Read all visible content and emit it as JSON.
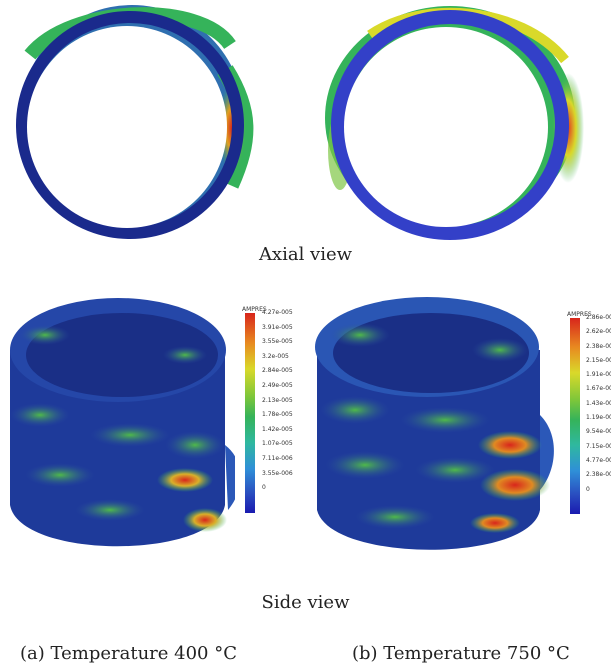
{
  "captions": {
    "axial": "Axial view",
    "side": "Side view",
    "a": "(a) Temperature 400 °C",
    "b": "(b) Temperature 750 °C"
  },
  "legend_left": {
    "title": "AMPRES",
    "ticks": [
      "4.27e-005",
      "3.91e-005",
      "3.55e-005",
      "3.2e-005",
      "2.84e-005",
      "2.49e-005",
      "2.13e-005",
      "1.78e-005",
      "1.42e-005",
      "1.07e-005",
      "7.11e-006",
      "3.55e-006",
      "0"
    ]
  },
  "legend_right": {
    "title": "AMPRES",
    "ticks": [
      "2.86e-00",
      "2.62e-00",
      "2.38e-00",
      "2.15e-00",
      "1.91e-00",
      "1.67e-00",
      "1.43e-00",
      "1.19e-00",
      "9.54e-00",
      "7.15e-00",
      "4.77e-00",
      "2.38e-00",
      "0"
    ]
  },
  "colors": {
    "ring_dark": "#1a2a8c",
    "ring_blue": "#3340c8",
    "hot": "#d8261c",
    "green": "#35b35a",
    "yellow": "#d9d92a"
  }
}
